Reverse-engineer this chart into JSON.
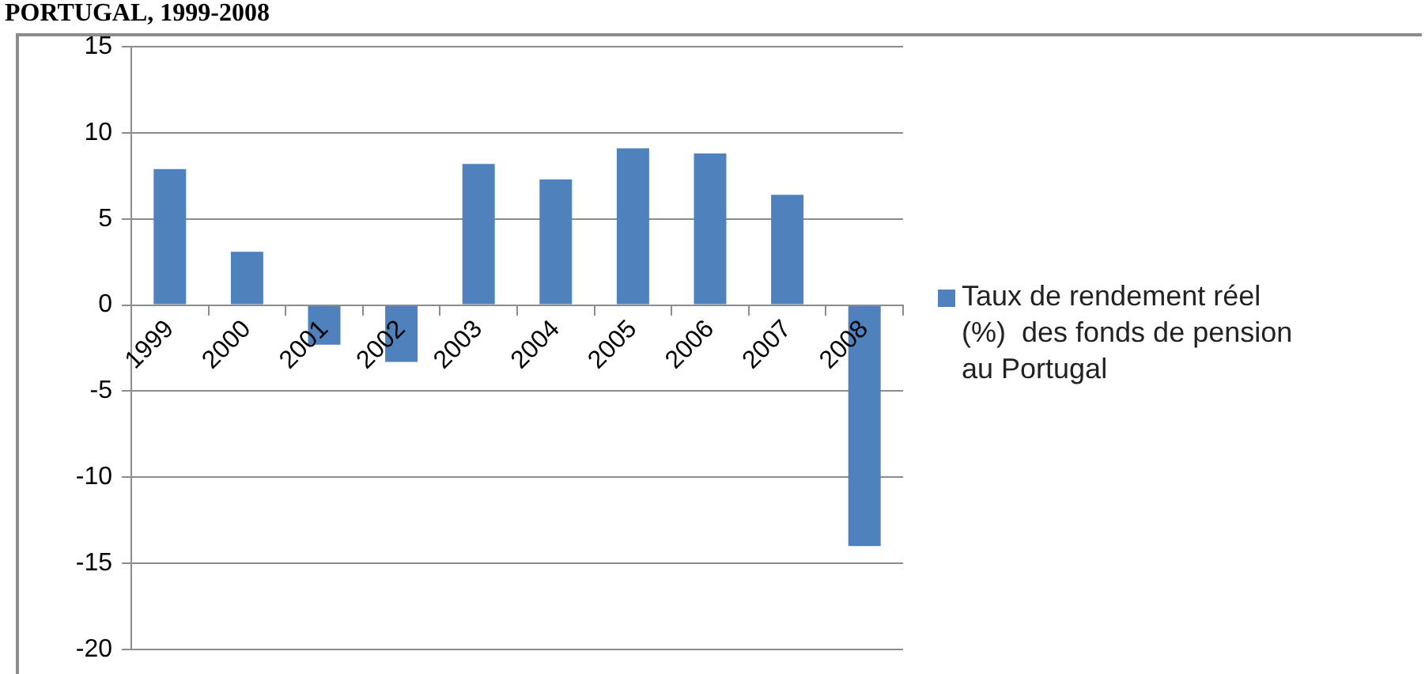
{
  "chart_data": {
    "type": "bar",
    "title": "PORTUGAL, 1999-2008",
    "categories": [
      "1999",
      "2000",
      "2001",
      "2002",
      "2003",
      "2004",
      "2005",
      "2006",
      "2007",
      "2008"
    ],
    "series": [
      {
        "name": "Taux de rendement réel (%)  des fonds de pension au Portugal",
        "color": "#4f81bd",
        "values": [
          7.9,
          3.1,
          -2.3,
          -3.3,
          8.2,
          7.3,
          9.1,
          8.8,
          6.4,
          -14.0
        ]
      }
    ],
    "ylim": [
      -20,
      15
    ],
    "yticks": [
      -20,
      -15,
      -10,
      -5,
      0,
      5,
      10,
      15
    ],
    "grid": "y",
    "legend": "right"
  }
}
